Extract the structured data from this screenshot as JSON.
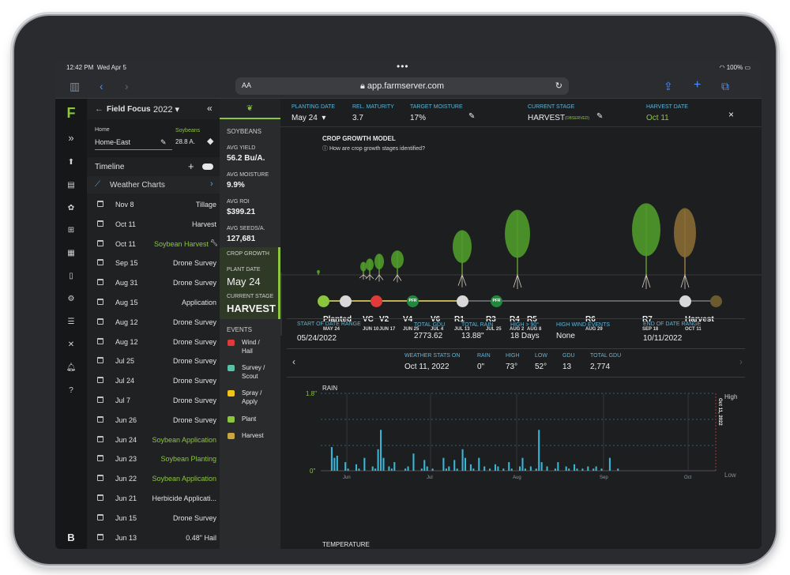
{
  "status_bar": {
    "time": "12:42 PM",
    "date": "Wed Apr 5",
    "dots": "•••",
    "battery": "100%"
  },
  "browser": {
    "aa": "AA",
    "url": "app.farmserver.com"
  },
  "icons": {
    "sidebar_toggle": "sidebar-icon",
    "back": "chevron-left-icon",
    "forward": "chevron-right-icon",
    "lock": "lock-icon",
    "reload": "reload-icon",
    "share": "share-icon",
    "new_tab": "plus-icon",
    "tabs": "tabs-icon"
  },
  "rail": {
    "logo": "F",
    "bottom_logo": "B"
  },
  "field_focus": {
    "title": "Field Focus",
    "year": "2022"
  },
  "farm": {
    "label": "Home",
    "name": "Home-East",
    "crop": "Soybeans",
    "acres": "28.8 A."
  },
  "timeline": {
    "title": "Timeline",
    "weather_charts": "Weather Charts",
    "rows": [
      {
        "date": "Nov 8",
        "type": "Tillage",
        "highlight": false
      },
      {
        "date": "Oct 11",
        "type": "Harvest",
        "highlight": false
      },
      {
        "date": "Oct 11",
        "type": "Soybean Harvest",
        "highlight": true
      },
      {
        "date": "Sep 15",
        "type": "Drone Survey",
        "highlight": false
      },
      {
        "date": "Aug 31",
        "type": "Drone Survey",
        "highlight": false
      },
      {
        "date": "Aug 15",
        "type": "Application",
        "highlight": false
      },
      {
        "date": "Aug 12",
        "type": "Drone Survey",
        "highlight": false
      },
      {
        "date": "Aug 12",
        "type": "Drone Survey",
        "highlight": false
      },
      {
        "date": "Jul 25",
        "type": "Drone Survey",
        "highlight": false
      },
      {
        "date": "Jul 24",
        "type": "Drone Survey",
        "highlight": false
      },
      {
        "date": "Jul 7",
        "type": "Drone Survey",
        "highlight": false
      },
      {
        "date": "Jun 26",
        "type": "Drone Survey",
        "highlight": false
      },
      {
        "date": "Jun 24",
        "type": "Soybean Application",
        "highlight": true
      },
      {
        "date": "Jun 23",
        "type": "Soybean Planting",
        "highlight": true
      },
      {
        "date": "Jun 22",
        "type": "Soybean Application",
        "highlight": true
      },
      {
        "date": "Jun 21",
        "type": "Herbicide Applicati...",
        "highlight": false
      },
      {
        "date": "Jun 15",
        "type": "Drone Survey",
        "highlight": false
      },
      {
        "date": "Jun 13",
        "type": "0.48\" Hail",
        "highlight": false
      }
    ]
  },
  "stats": {
    "crop": "SOYBEANS",
    "avg_yield_label": "AVG YIELD",
    "avg_yield": "56.2 Bu/A.",
    "avg_moisture_label": "AVG MOISTURE",
    "avg_moisture": "9.9%",
    "avg_roi_label": "AVG ROI",
    "avg_roi": "$399.21",
    "avg_seeds_label": "AVG SEEDS/A.",
    "avg_seeds": "127,681",
    "crop_growth": "CROP GROWTH",
    "plant_date_label": "PLANT DATE",
    "plant_date": "May 24",
    "current_stage_label": "CURRENT STAGE",
    "current_stage": "HARVEST",
    "events_title": "EVENTS",
    "events": [
      {
        "l1": "Wind /",
        "l2": "Hail",
        "icon": "wind-hail-icon",
        "color": "#e03a3a"
      },
      {
        "l1": "Survey /",
        "l2": "Scout",
        "icon": "survey-icon",
        "color": "#57c2a8"
      },
      {
        "l1": "Spray /",
        "l2": "Apply",
        "icon": "spray-icon",
        "color": "#f2c418"
      },
      {
        "l1": "Plant",
        "l2": "",
        "icon": "plant-icon",
        "color": "#8cc63f"
      },
      {
        "l1": "Harvest",
        "l2": "",
        "icon": "harvest-icon",
        "color": "#c9a640"
      }
    ]
  },
  "header": {
    "planting_date_label": "PLANTING DATE",
    "planting_date": "May 24",
    "rel_maturity_label": "REL. MATURITY",
    "rel_maturity": "3.7",
    "target_moisture_label": "TARGET MOISTURE",
    "target_moisture": "17%",
    "current_stage_label": "CURRENT STAGE",
    "current_stage": "HARVEST",
    "observed": "(OBSERVED)",
    "harvest_date_label": "HARVEST DATE",
    "harvest_date": "Oct 11",
    "close": "×"
  },
  "growth_model": {
    "title": "CROP GROWTH MODEL",
    "help": "How are crop growth stages identified?",
    "stages": [
      {
        "label": "Planted",
        "date": "MAY 24"
      },
      {
        "label": "VC",
        "date": "JUN 10"
      },
      {
        "label": "V2",
        "date": "JUN 17"
      },
      {
        "label": "V4",
        "date": "JUN 25"
      },
      {
        "label": "V6",
        "date": "JUL 4"
      },
      {
        "label": "R1",
        "date": "JUL 13"
      },
      {
        "label": "R3",
        "date": "JUL 25"
      },
      {
        "label": "R4",
        "date": "AUG 2"
      },
      {
        "label": "R5",
        "date": "AUG 8"
      },
      {
        "label": "R6",
        "date": "AUG 29"
      },
      {
        "label": "R7",
        "date": "SEP 18"
      },
      {
        "label": "Harvest",
        "date": "OCT 11"
      }
    ],
    "pfr": "PFR"
  },
  "range_stats": {
    "start_label": "START OF DATE RANGE",
    "start": "05/24/2022",
    "gdu_label": "TOTAL GDU",
    "gdu": "2773.62",
    "rain_label": "TOTAL RAIN",
    "rain": "13.88\"",
    "high90_label": "HIGH > 90°",
    "high90": "18 Days",
    "wind_label": "HIGH WIND EVENTS",
    "wind": "None",
    "end_label": "END OF DATE RANGE",
    "end": "10/11/2022"
  },
  "weather_day": {
    "on_label": "WEATHER STATS ON",
    "on": "Oct 11, 2022",
    "rain_label": "RAIN",
    "rain": "0\"",
    "high_label": "HIGH",
    "high": "73°",
    "low_label": "LOW",
    "low": "52°",
    "gdu_label": "GDU",
    "gdu": "13",
    "total_label": "TOTAL GDU",
    "total": "2,774"
  },
  "chart_data": {
    "type": "bar",
    "title": "RAIN",
    "ylim": [
      0,
      1.8
    ],
    "y_ticks": [
      "1.8\"",
      "0\""
    ],
    "x_ticks": [
      "Jun",
      "Jul",
      "Aug",
      "Sep",
      "Oct"
    ],
    "high_label": "High",
    "low_label": "Low",
    "marker_label": "Oct 11, 2022",
    "values": [
      0,
      0,
      0.55,
      0.3,
      0.35,
      0,
      0,
      0.2,
      0.05,
      0,
      0,
      0.15,
      0.05,
      0,
      0.3,
      0,
      0,
      0.1,
      0.05,
      0.5,
      0.95,
      0.3,
      0,
      0.1,
      0.05,
      0.2,
      0,
      0,
      0,
      0.05,
      0.1,
      0,
      0.4,
      0,
      0,
      0.05,
      0.25,
      0.1,
      0,
      0.05,
      0,
      0,
      0,
      0.3,
      0.05,
      0.1,
      0,
      0.25,
      0.05,
      0,
      0.5,
      0.3,
      0,
      0.15,
      0.05,
      0,
      0.3,
      0,
      0.1,
      0,
      0.05,
      0,
      0.15,
      0.1,
      0,
      0.05,
      0,
      0.2,
      0.05,
      0,
      0,
      0.1,
      0.3,
      0.05,
      0,
      0.1,
      0,
      0.05,
      0.95,
      0.2,
      0,
      0.1,
      0,
      0,
      0.05,
      0.2,
      0,
      0,
      0.1,
      0.05,
      0,
      0.15,
      0.05,
      0,
      0.05,
      0,
      0.1,
      0,
      0.05,
      0.1,
      0,
      0.05,
      0,
      0,
      0.3,
      0,
      0,
      0.05,
      0,
      0,
      0,
      0,
      0,
      0,
      0,
      0,
      0,
      0,
      0,
      0,
      0,
      0,
      0,
      0,
      0,
      0,
      0,
      0,
      0,
      0,
      0,
      0,
      0,
      0,
      0,
      0,
      0,
      0,
      0,
      0,
      0,
      0
    ],
    "next_section": "TEMPERATURE"
  }
}
